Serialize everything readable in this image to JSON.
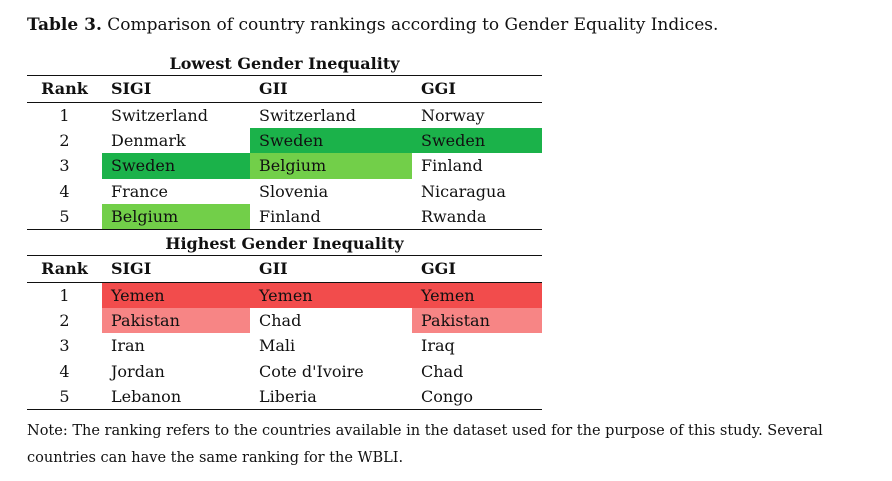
{
  "caption": {
    "label": "Table 3.",
    "text": "Comparison of country rankings according to Gender Equality Indices."
  },
  "colors": {
    "dark_green": "#1bb24a",
    "light_green": "#72cf49",
    "dark_red": "#f24c4c",
    "light_red": "#f78585"
  },
  "headers": {
    "rank": "Rank",
    "sigi": "SIGI",
    "gii": "GII",
    "ggi": "GGI"
  },
  "sections": [
    {
      "title": "Lowest Gender Inequality",
      "rows": [
        {
          "rank": "1",
          "sigi": "Switzerland",
          "gii": "Switzerland",
          "ggi": "Norway",
          "sigi_hl": "",
          "gii_hl": "",
          "ggi_hl": ""
        },
        {
          "rank": "2",
          "sigi": "Denmark",
          "gii": "Sweden",
          "ggi": "Sweden",
          "sigi_hl": "",
          "gii_hl": "dark_green",
          "ggi_hl": "dark_green"
        },
        {
          "rank": "3",
          "sigi": "Sweden",
          "gii": "Belgium",
          "ggi": "Finland",
          "sigi_hl": "dark_green",
          "gii_hl": "light_green",
          "ggi_hl": ""
        },
        {
          "rank": "4",
          "sigi": "France",
          "gii": "Slovenia",
          "ggi": "Nicaragua",
          "sigi_hl": "",
          "gii_hl": "",
          "ggi_hl": ""
        },
        {
          "rank": "5",
          "sigi": "Belgium",
          "gii": "Finland",
          "ggi": "Rwanda",
          "sigi_hl": "light_green",
          "gii_hl": "",
          "ggi_hl": ""
        }
      ]
    },
    {
      "title": "Highest Gender Inequality",
      "rows": [
        {
          "rank": "1",
          "sigi": "Yemen",
          "gii": "Yemen",
          "ggi": "Yemen",
          "sigi_hl": "dark_red",
          "gii_hl": "dark_red",
          "ggi_hl": "dark_red"
        },
        {
          "rank": "2",
          "sigi": "Pakistan",
          "gii": "Chad",
          "ggi": "Pakistan",
          "sigi_hl": "light_red",
          "gii_hl": "",
          "ggi_hl": "light_red"
        },
        {
          "rank": "3",
          "sigi": "Iran",
          "gii": "Mali",
          "ggi": "Iraq",
          "sigi_hl": "",
          "gii_hl": "",
          "ggi_hl": ""
        },
        {
          "rank": "4",
          "sigi": "Jordan",
          "gii": "Cote d'Ivoire",
          "ggi": "Chad",
          "sigi_hl": "",
          "gii_hl": "",
          "ggi_hl": ""
        },
        {
          "rank": "5",
          "sigi": "Lebanon",
          "gii": "Liberia",
          "ggi": "Congo",
          "sigi_hl": "",
          "gii_hl": "",
          "ggi_hl": ""
        }
      ]
    }
  ],
  "note": "Note: The ranking refers to the countries available in the dataset used for the purpose of this study. Several countries can have the same ranking for the WBLI."
}
